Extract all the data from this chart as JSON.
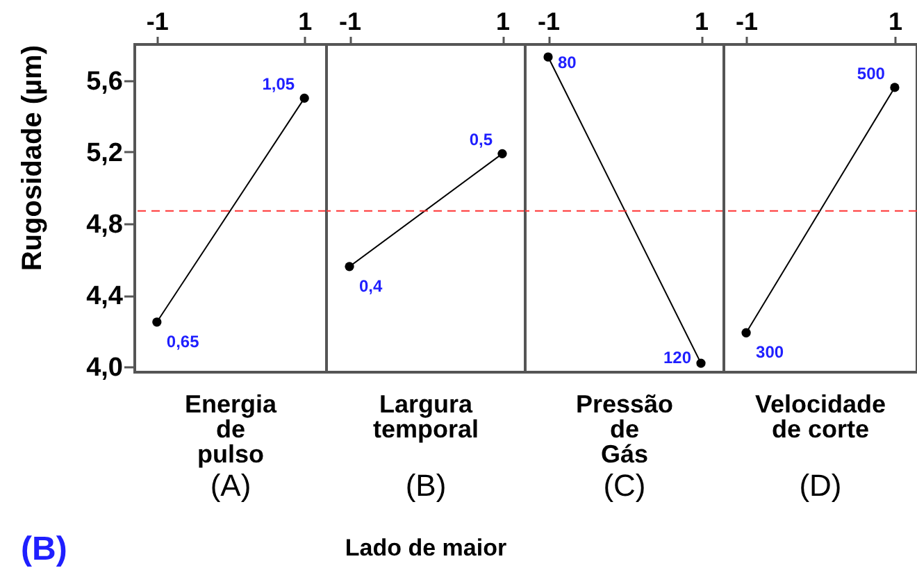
{
  "chart_data": [
    {
      "type": "line",
      "xlabel": "Energia\nde\npulso\n(A)",
      "ylabel": "Rugosidade (µm)",
      "categories": [
        "-1",
        "1"
      ],
      "series": [
        {
          "color": "#000000",
          "values": [
            4.25,
            5.5
          ]
        }
      ],
      "ylim": [
        3.97,
        5.8
      ],
      "yticks": [
        {
          "value": 4,
          "label": "4,0"
        },
        {
          "value": 4.4,
          "label": "4,4"
        },
        {
          "value": 4.8,
          "label": "4,8"
        },
        {
          "value": 5.2,
          "label": "5,2"
        },
        {
          "value": 5.6,
          "label": "5,6"
        }
      ],
      "marker": "circle",
      "ref_lines": [
        {
          "axis": "y",
          "value": 4.87,
          "color": "#ff3333",
          "line_style": "dashed"
        }
      ],
      "annotations": [
        {
          "text": "0,65",
          "x": "-1",
          "y": 4.25
        },
        {
          "text": "1,05",
          "x": "1",
          "y": 5.5
        },
        "(B)"
      ]
    },
    {
      "type": "line",
      "xlabel": "Largura\ntemporal\n(B)",
      "categories": [
        "-1",
        "1"
      ],
      "series": [
        {
          "color": "#000000",
          "values": [
            4.56,
            5.19
          ]
        }
      ],
      "ylim": [
        3.97,
        5.8
      ],
      "tick_labels": "x",
      "marker": "circle",
      "ref_lines": [
        {
          "axis": "y",
          "value": 4.87,
          "color": "#ff3333",
          "line_style": "dashed"
        }
      ],
      "annotations": [
        {
          "text": "0,4",
          "x": "-1",
          "y": 4.56
        },
        {
          "text": "0,5",
          "x": "1",
          "y": 5.19
        },
        "Lado de maior"
      ]
    },
    {
      "type": "line",
      "xlabel": "Pressão\nde\nGás\n(C)",
      "categories": [
        "-1",
        "1"
      ],
      "series": [
        {
          "color": "#000000",
          "values": [
            5.73,
            4.02
          ]
        }
      ],
      "ylim": [
        3.97,
        5.8
      ],
      "tick_labels": "x",
      "marker": "circle",
      "ref_lines": [
        {
          "axis": "y",
          "value": 4.87,
          "color": "#ff3333",
          "line_style": "dashed"
        }
      ],
      "annotations": [
        {
          "text": "80",
          "x": "-1",
          "y": 5.73
        },
        {
          "text": "120",
          "x": "1",
          "y": 4.02
        }
      ]
    },
    {
      "type": "line",
      "xlabel": "Velocidade\nde corte\n(D)",
      "categories": [
        "-1",
        "1"
      ],
      "series": [
        {
          "color": "#000000",
          "values": [
            4.19,
            5.56
          ]
        }
      ],
      "ylim": [
        3.97,
        5.8
      ],
      "tick_labels": "x",
      "marker": "circle",
      "ref_lines": [
        {
          "axis": "y",
          "value": 4.87,
          "color": "#ff3333",
          "line_style": "dashed"
        }
      ],
      "annotations": [
        {
          "text": "300",
          "x": "-1",
          "y": 4.19
        },
        {
          "text": "500",
          "x": "1",
          "y": 5.56
        }
      ]
    }
  ]
}
